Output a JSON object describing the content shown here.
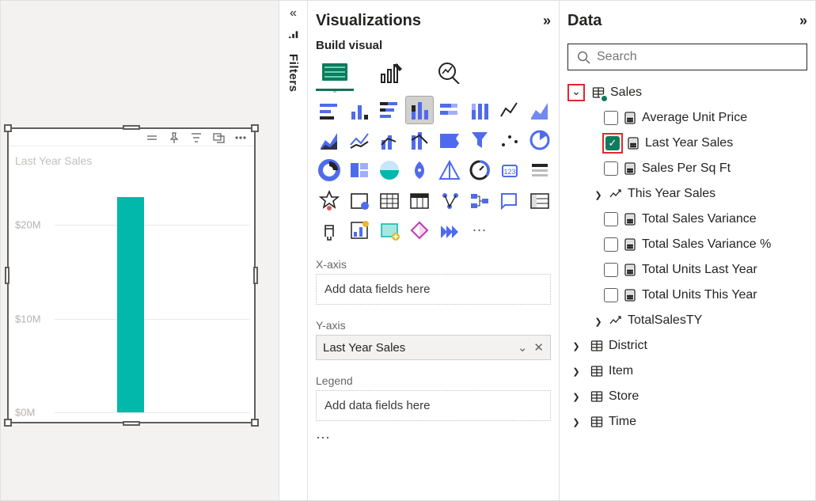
{
  "canvas": {
    "chart": {
      "title": "Last Year Sales",
      "type": "bar",
      "bar_color": "#01b8aa",
      "background_color": "#ffffff",
      "ymax": 25000000,
      "ticks": [
        {
          "v": 0,
          "label": "$0M"
        },
        {
          "v": 10000000,
          "label": "$10M"
        },
        {
          "v": 20000000,
          "label": "$20M"
        }
      ],
      "bars": [
        {
          "x": 0.32,
          "width": 0.14,
          "value": 23000000
        }
      ],
      "tick_color": "#b4b2b0",
      "grid_color": "#e8e8e8"
    }
  },
  "filters": {
    "label": "Filters"
  },
  "viz": {
    "title": "Visualizations",
    "subtitle": "Build visual",
    "wells": {
      "x": {
        "label": "X-axis",
        "placeholder": "Add data fields here"
      },
      "y": {
        "label": "Y-axis",
        "value": "Last Year Sales"
      },
      "legend": {
        "label": "Legend",
        "placeholder": "Add data fields here"
      }
    },
    "selected_chart_index": 3
  },
  "data": {
    "title": "Data",
    "search_placeholder": "Search",
    "tables": [
      {
        "name": "Sales",
        "expanded": true,
        "highlight_arrow": true,
        "has_ok_badge": true,
        "fields": [
          {
            "name": "Average Unit Price",
            "checked": false,
            "icon": "calc"
          },
          {
            "name": "Last Year Sales",
            "checked": true,
            "highlight_checkbox": true,
            "icon": "calc"
          },
          {
            "name": "Sales Per Sq Ft",
            "checked": false,
            "icon": "calc"
          },
          {
            "name": "This Year Sales",
            "checked": false,
            "icon": "trend",
            "has_arrow": true
          },
          {
            "name": "Total Sales Variance",
            "checked": false,
            "icon": "calc"
          },
          {
            "name": "Total Sales Variance %",
            "checked": false,
            "icon": "calc"
          },
          {
            "name": "Total Units Last Year",
            "checked": false,
            "icon": "calc"
          },
          {
            "name": "Total Units This Year",
            "checked": false,
            "icon": "calc"
          },
          {
            "name": "TotalSalesTY",
            "checked": false,
            "icon": "trend",
            "has_arrow": true
          }
        ]
      },
      {
        "name": "District",
        "expanded": false
      },
      {
        "name": "Item",
        "expanded": false
      },
      {
        "name": "Store",
        "expanded": false
      },
      {
        "name": "Time",
        "expanded": false
      }
    ]
  }
}
